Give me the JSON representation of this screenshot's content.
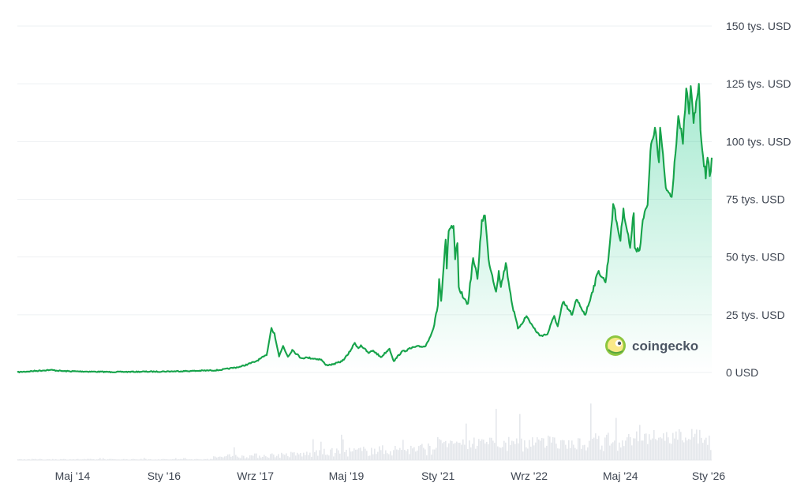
{
  "chart_data": {
    "type": "area",
    "colors": {
      "line": "#16a34a",
      "area_top": "#16c784",
      "grid": "#eef0f3",
      "volume": "#e4e7eb"
    },
    "y_ticks": [
      {
        "value": 0,
        "label": "0 USD"
      },
      {
        "value": 25000,
        "label": "25 tys. USD"
      },
      {
        "value": 50000,
        "label": "50 tys. USD"
      },
      {
        "value": 75000,
        "label": "75 tys. USD"
      },
      {
        "value": 100000,
        "label": "100 tys. USD"
      },
      {
        "value": 125000,
        "label": "125 tys. USD"
      },
      {
        "value": 150000,
        "label": "150 tys. USD"
      }
    ],
    "ylim": [
      0,
      150000
    ],
    "xlim": [
      "2013-04-28",
      "2025-12-31"
    ],
    "x_ticks": [
      {
        "date": "2014-05-01",
        "label": "Maj '14"
      },
      {
        "date": "2016-01-01",
        "label": "Sty '16"
      },
      {
        "date": "2017-09-01",
        "label": "Wrz '17"
      },
      {
        "date": "2019-05-01",
        "label": "Maj '19"
      },
      {
        "date": "2021-01-01",
        "label": "Sty '21"
      },
      {
        "date": "2022-09-01",
        "label": "Wrz '22"
      },
      {
        "date": "2024-05-01",
        "label": "Maj '24"
      },
      {
        "date": "2026-01-01",
        "label": "Sty '26"
      }
    ],
    "series": [
      {
        "points": [
          [
            "2013-04-28",
            135
          ],
          [
            "2013-11-30",
            1100
          ],
          [
            "2014-03-01",
            600
          ],
          [
            "2015-01-15",
            210
          ],
          [
            "2016-01-01",
            430
          ],
          [
            "2016-07-01",
            650
          ],
          [
            "2017-01-01",
            1000
          ],
          [
            "2017-05-25",
            2500
          ],
          [
            "2017-09-01",
            4700
          ],
          [
            "2017-11-15",
            7500
          ],
          [
            "2017-12-17",
            19300
          ],
          [
            "2018-01-06",
            17000
          ],
          [
            "2018-02-06",
            6900
          ],
          [
            "2018-03-05",
            11500
          ],
          [
            "2018-04-06",
            6800
          ],
          [
            "2018-05-05",
            9800
          ],
          [
            "2018-07-01",
            6300
          ],
          [
            "2018-08-15",
            6400
          ],
          [
            "2018-11-14",
            5600
          ],
          [
            "2018-12-15",
            3200
          ],
          [
            "2019-02-01",
            3500
          ],
          [
            "2019-04-02",
            4900
          ],
          [
            "2019-05-14",
            8000
          ],
          [
            "2019-06-26",
            12800
          ],
          [
            "2019-07-20",
            10500
          ],
          [
            "2019-08-06",
            11800
          ],
          [
            "2019-09-25",
            8400
          ],
          [
            "2019-10-26",
            9500
          ],
          [
            "2019-12-17",
            6600
          ],
          [
            "2020-02-12",
            10300
          ],
          [
            "2020-03-12",
            4900
          ],
          [
            "2020-05-01",
            8800
          ],
          [
            "2020-07-27",
            11000
          ],
          [
            "2020-10-10",
            11400
          ],
          [
            "2020-12-01",
            19000
          ],
          [
            "2020-12-31",
            29000
          ],
          [
            "2021-01-08",
            40500
          ],
          [
            "2021-01-22",
            31000
          ],
          [
            "2021-02-21",
            57500
          ],
          [
            "2021-02-28",
            45000
          ],
          [
            "2021-03-13",
            61200
          ],
          [
            "2021-04-14",
            63500
          ],
          [
            "2021-04-25",
            49000
          ],
          [
            "2021-05-10",
            56000
          ],
          [
            "2021-05-19",
            37000
          ],
          [
            "2021-06-22",
            32000
          ],
          [
            "2021-07-20",
            29800
          ],
          [
            "2021-08-23",
            49500
          ],
          [
            "2021-09-21",
            40500
          ],
          [
            "2021-10-20",
            66000
          ],
          [
            "2021-11-10",
            68000
          ],
          [
            "2021-12-04",
            49000
          ],
          [
            "2022-01-23",
            35000
          ],
          [
            "2022-02-10",
            44000
          ],
          [
            "2022-02-24",
            37000
          ],
          [
            "2022-03-29",
            47400
          ],
          [
            "2022-05-12",
            28900
          ],
          [
            "2022-06-18",
            19000
          ],
          [
            "2022-08-14",
            24400
          ],
          [
            "2022-10-01",
            19300
          ],
          [
            "2022-11-09",
            16000
          ],
          [
            "2022-12-31",
            16500
          ],
          [
            "2023-02-15",
            24500
          ],
          [
            "2023-03-10",
            20000
          ],
          [
            "2023-04-14",
            30400
          ],
          [
            "2023-06-15",
            25000
          ],
          [
            "2023-07-13",
            31500
          ],
          [
            "2023-09-11",
            25000
          ],
          [
            "2023-10-24",
            34500
          ],
          [
            "2023-12-08",
            44000
          ],
          [
            "2024-01-23",
            39000
          ],
          [
            "2024-02-15",
            52000
          ],
          [
            "2024-03-14",
            73000
          ],
          [
            "2024-05-01",
            57000
          ],
          [
            "2024-05-21",
            71000
          ],
          [
            "2024-07-05",
            54000
          ],
          [
            "2024-07-29",
            69000
          ],
          [
            "2024-08-05",
            54000
          ],
          [
            "2024-09-06",
            53000
          ],
          [
            "2024-09-27",
            66000
          ],
          [
            "2024-10-29",
            72500
          ],
          [
            "2024-11-12",
            89000
          ],
          [
            "2024-11-22",
            99000
          ],
          [
            "2024-12-17",
            106000
          ],
          [
            "2025-01-13",
            91000
          ],
          [
            "2025-01-21",
            106000
          ],
          [
            "2025-02-28",
            80000
          ],
          [
            "2025-04-08",
            76000
          ],
          [
            "2025-05-22",
            111000
          ],
          [
            "2025-06-22",
            99000
          ],
          [
            "2025-07-14",
            123000
          ],
          [
            "2025-08-02",
            112000
          ],
          [
            "2025-08-13",
            124000
          ],
          [
            "2025-09-01",
            108000
          ],
          [
            "2025-10-06",
            125000
          ],
          [
            "2025-10-17",
            105000
          ],
          [
            "2025-11-21",
            84000
          ],
          [
            "2025-12-03",
            93000
          ],
          [
            "2025-12-18",
            85000
          ],
          [
            "2025-12-31",
            93000
          ]
        ]
      }
    ]
  },
  "brand": {
    "name": "coingecko"
  }
}
